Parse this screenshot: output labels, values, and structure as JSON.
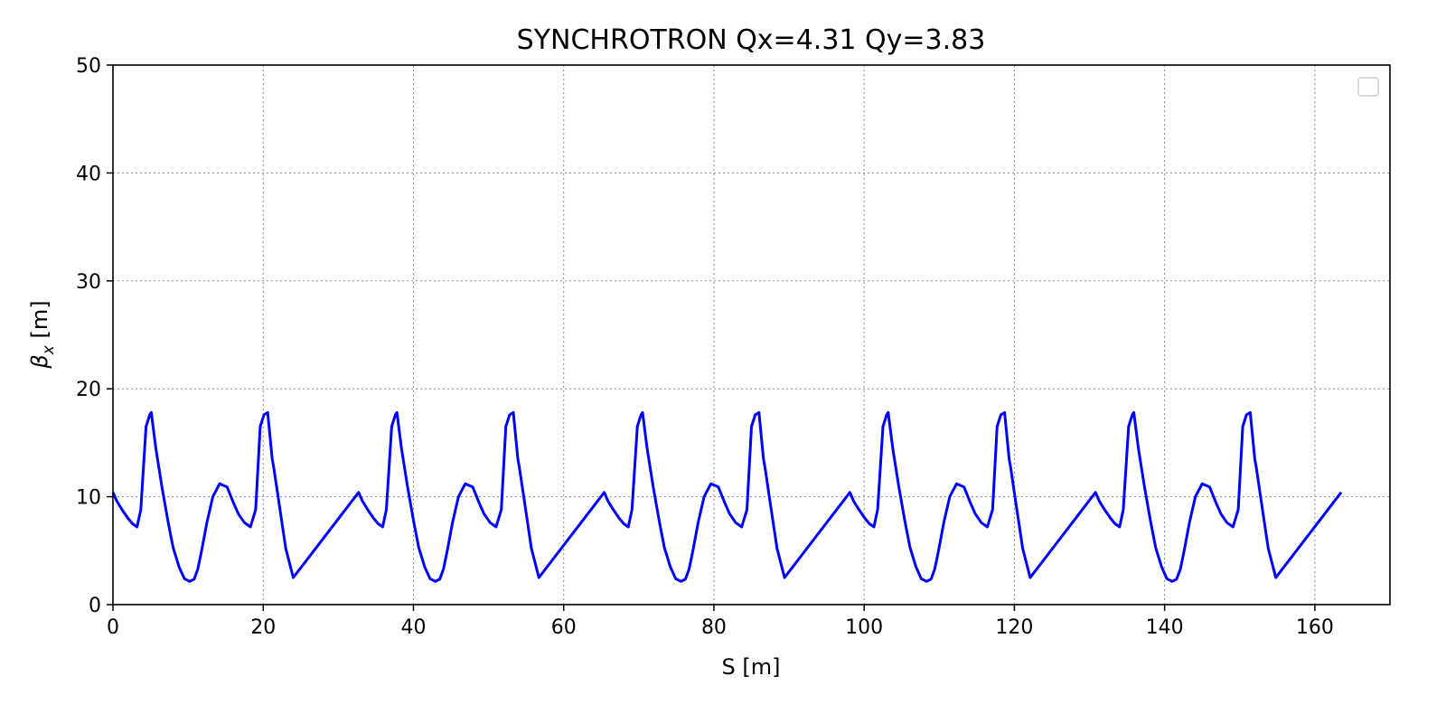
{
  "chart_data": {
    "type": "line",
    "title": "SYNCHROTRON Qx=4.31 Qy=3.83",
    "xlabel": "S [m]",
    "ylabel": "β",
    "ylabel_sub": "x",
    "ylabel_unit": " [m]",
    "xlim": [
      0,
      170
    ],
    "ylim": [
      0,
      50
    ],
    "xticks": [
      0,
      20,
      40,
      60,
      80,
      100,
      120,
      140,
      160
    ],
    "yticks": [
      0,
      10,
      20,
      30,
      40,
      50
    ],
    "grid": true,
    "legend": "top-right, empty",
    "colors": {
      "series": "#0000ff",
      "grid": "#8a8a8a"
    },
    "period_length": 16.35,
    "periods": 10,
    "series": [
      {
        "color": "#0000ff",
        "cell_s": [
          0.0,
          0.5,
          1.2,
          2.0,
          2.6,
          3.2,
          3.7,
          4.4,
          4.9,
          5.1,
          5.7,
          6.5,
          7.3,
          8.0,
          8.8,
          9.5,
          10.2,
          10.8,
          11.3,
          11.8,
          12.5,
          13.3,
          14.2,
          15.2,
          16.0,
          16.7,
          17.5,
          18.3,
          19.0,
          19.6,
          20.1,
          20.6,
          21.2,
          21.4,
          22.0,
          23.0,
          24.0
        ],
        "cell_beta": [
          10.4,
          9.6,
          8.8,
          8.0,
          7.5,
          7.2,
          8.8,
          16.5,
          17.6,
          17.8,
          14.5,
          11.0,
          7.8,
          5.3,
          3.5,
          2.4,
          2.15,
          2.35,
          3.3,
          5.0,
          7.6,
          10.0,
          11.2,
          10.9,
          9.5,
          8.4,
          7.6,
          7.2,
          8.8,
          16.5,
          17.6,
          17.8,
          13.5,
          12.7,
          9.9,
          5.2,
          2.5
        ],
        "peaks_s": [
          5.0,
          21.3,
          37.7,
          54.1,
          70.4,
          86.8,
          103.1,
          119.5,
          135.9,
          152.2
        ],
        "peak_beta": 17.8,
        "minima_s": [
          11.0,
          27.4,
          43.7,
          60.1,
          76.5,
          92.8,
          109.2,
          125.5,
          141.9,
          158.2
        ],
        "min_beta": 2.15,
        "end_s": 163.5,
        "end_beta": 10.4
      }
    ]
  }
}
